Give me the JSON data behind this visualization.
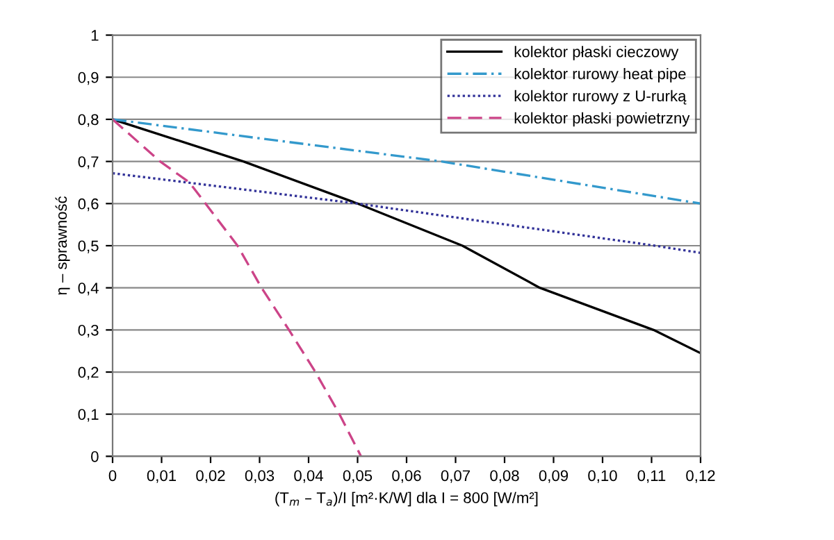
{
  "chart_data": {
    "type": "line",
    "xlabel": "(T$_{m}$ – T$_{a}$)/I [m²·K/W] dla I = 800 [W/m²]",
    "ylabel": "η – sprawność",
    "xlim": [
      0,
      0.12
    ],
    "ylim": [
      0,
      1
    ],
    "xticks": [
      0,
      {
        "value": 0.01,
        "label": "0,01"
      },
      {
        "value": 0.02,
        "label": "0,02"
      },
      {
        "value": 0.03,
        "label": "0,03"
      },
      {
        "value": 0.04,
        "label": "0,04"
      },
      {
        "value": 0.05,
        "label": "0,05"
      },
      {
        "value": 0.06,
        "label": "0,06"
      },
      {
        "value": 0.07,
        "label": "0,07"
      },
      {
        "value": 0.08,
        "label": "0,08"
      },
      {
        "value": 0.09,
        "label": "0,09"
      },
      {
        "value": 0.1,
        "label": "0,10"
      },
      {
        "value": 0.11,
        "label": "0,11"
      },
      {
        "value": 0.12,
        "label": "0,12"
      }
    ],
    "yticks": [
      0,
      {
        "value": 0.1,
        "label": "0,1"
      },
      {
        "value": 0.2,
        "label": "0,2"
      },
      {
        "value": 0.3,
        "label": "0,3"
      },
      {
        "value": 0.4,
        "label": "0,4"
      },
      {
        "value": 0.5,
        "label": "0,5"
      },
      {
        "value": 0.6,
        "label": "0,6"
      },
      {
        "value": 0.7,
        "label": "0,7"
      },
      {
        "value": 0.8,
        "label": "0,8"
      },
      {
        "value": 0.9,
        "label": "0,9"
      },
      1
    ],
    "grid": "y",
    "legend": "top right",
    "marker": "none",
    "series": [
      {
        "name": "kolektor płaski cieczowy",
        "color": "#000000",
        "line_style": "solid",
        "x": [
          0,
          0.0267,
          0.05,
          0.0714,
          0.0872,
          0.1104,
          0.12
        ],
        "values": [
          0.8,
          0.7,
          0.6,
          0.5,
          0.4,
          0.3,
          0.245
        ]
      },
      {
        "name": "kolektor rurowy heat pipe",
        "color": "#3399cc",
        "line_style": "dashdot",
        "x": [
          0,
          0.03,
          0.0671,
          0.12
        ],
        "values": [
          0.8,
          0.755,
          0.7,
          0.6
        ]
      },
      {
        "name": "kolektor rurowy z U-rurką",
        "color": "#333399",
        "line_style": "dotted",
        "x": [
          0,
          0.05,
          0.1107,
          0.12
        ],
        "values": [
          0.672,
          0.6,
          0.5,
          0.483
        ]
      },
      {
        "name": "kolektor płaski powietrzny",
        "color": "#cc4488",
        "line_style": "dashed",
        "x": [
          0,
          0.0097,
          0.0157,
          0.0255,
          0.0304,
          0.036,
          0.0414,
          0.0463,
          0.0507
        ],
        "values": [
          0.8,
          0.7,
          0.65,
          0.5,
          0.4,
          0.3,
          0.2,
          0.1,
          0
        ]
      }
    ]
  }
}
